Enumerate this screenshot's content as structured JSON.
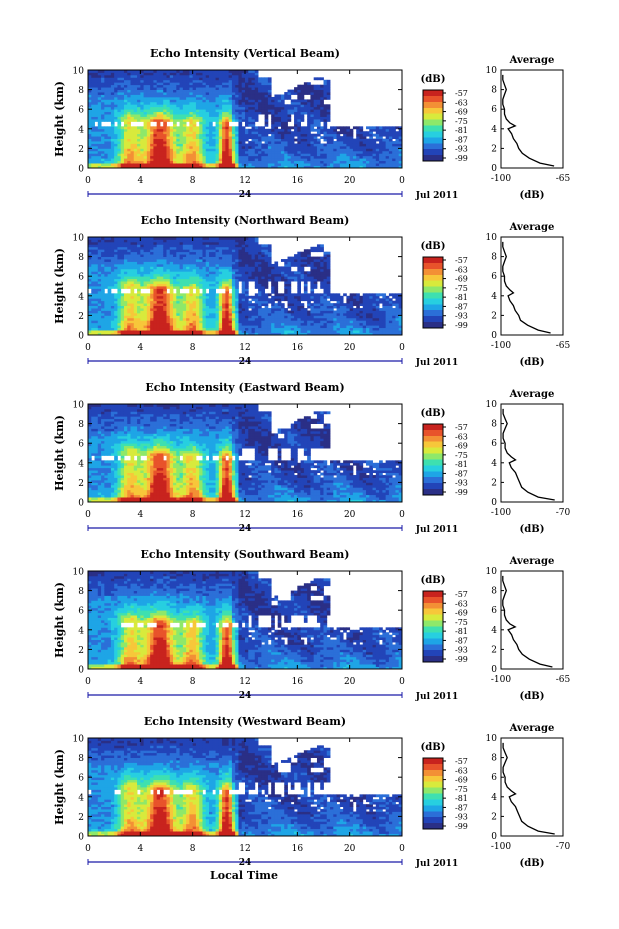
{
  "figure": {
    "xlabel": "Local Time",
    "colors": {
      "colormap": [
        "#2a2f86",
        "#2244b8",
        "#2b6fd8",
        "#1ea5e6",
        "#27cfe0",
        "#3ee0b0",
        "#8ee86a",
        "#d8ea3c",
        "#f7c73a",
        "#f39035",
        "#e8532b",
        "#c8231e"
      ],
      "no_data": "#ffffff",
      "axis": "#000000",
      "date_axis": "#1a1aa8"
    }
  },
  "chart_data": [
    {
      "type": "heatmap",
      "title": "Echo Intensity (Vertical Beam)",
      "ylabel": "Height (km)",
      "x_ticks": [
        "0",
        "4",
        "8",
        "12",
        "16",
        "20",
        "0"
      ],
      "xlim": [
        0,
        24
      ],
      "y_ticks": [
        "0",
        "2",
        "4",
        "6",
        "8",
        "10"
      ],
      "ylim": [
        0,
        10
      ],
      "date_tick": "24",
      "date_label": "Jul 2011",
      "colorbar_label": "(dB)",
      "colorbar_ticks": [
        "-57",
        "-63",
        "-69",
        "-75",
        "-81",
        "-87",
        "-93",
        "-99"
      ],
      "clim": [
        -99,
        -57
      ],
      "average_title": "Average",
      "average_xlabel": "(dB)",
      "average_xticks": [
        "-100",
        "-65"
      ],
      "average_xlim": [
        -100,
        -65
      ],
      "average_yticks": [
        "0",
        "2",
        "4",
        "6",
        "8",
        "10"
      ],
      "average_profile": {
        "height": [
          0.2,
          0.5,
          1.0,
          1.5,
          2.0,
          2.5,
          3.0,
          3.5,
          4.0,
          4.3,
          4.6,
          5.0,
          5.5,
          6.0,
          6.5,
          7.0,
          7.5,
          8.0,
          8.5,
          9.0,
          9.5
        ],
        "value": [
          -70,
          -78,
          -84,
          -88,
          -90,
          -91,
          -93,
          -94,
          -96,
          -92,
          -95,
          -97,
          -98,
          -98,
          -99,
          -99,
          -98,
          -97,
          -98,
          -99,
          -99
        ]
      }
    },
    {
      "type": "heatmap",
      "title": "Echo Intensity (Northward Beam)",
      "ylabel": "Height (km)",
      "x_ticks": [
        "0",
        "4",
        "8",
        "12",
        "16",
        "20",
        "0"
      ],
      "xlim": [
        0,
        24
      ],
      "y_ticks": [
        "0",
        "2",
        "4",
        "6",
        "8",
        "10"
      ],
      "ylim": [
        0,
        10
      ],
      "date_tick": "24",
      "date_label": "Jul 2011",
      "colorbar_label": "(dB)",
      "colorbar_ticks": [
        "-57",
        "-63",
        "-69",
        "-75",
        "-81",
        "-87",
        "-93",
        "-99"
      ],
      "clim": [
        -99,
        -57
      ],
      "average_title": "Average",
      "average_xlabel": "(dB)",
      "average_xticks": [
        "-100",
        "-65"
      ],
      "average_xlim": [
        -100,
        -65
      ],
      "average_yticks": [
        "0",
        "2",
        "4",
        "6",
        "8",
        "10"
      ],
      "average_profile": {
        "height": [
          0.2,
          0.5,
          1.0,
          1.5,
          2.0,
          2.5,
          3.0,
          3.5,
          4.0,
          4.3,
          4.6,
          5.0,
          5.5,
          6.0,
          6.5,
          7.0,
          7.5,
          8.0,
          8.5,
          9.0,
          9.5
        ],
        "value": [
          -72,
          -79,
          -85,
          -89,
          -90,
          -92,
          -93,
          -95,
          -96,
          -93,
          -95,
          -97,
          -98,
          -98,
          -99,
          -99,
          -98,
          -97,
          -98,
          -99,
          -99
        ]
      }
    },
    {
      "type": "heatmap",
      "title": "Echo Intensity (Eastward Beam)",
      "ylabel": "Height (km)",
      "x_ticks": [
        "0",
        "4",
        "8",
        "12",
        "16",
        "20",
        "0"
      ],
      "xlim": [
        0,
        24
      ],
      "y_ticks": [
        "0",
        "2",
        "4",
        "6",
        "8",
        "10"
      ],
      "ylim": [
        0,
        10
      ],
      "date_tick": "24",
      "date_label": "Jul 2011",
      "colorbar_label": "(dB)",
      "colorbar_ticks": [
        "-57",
        "-63",
        "-69",
        "-75",
        "-81",
        "-87",
        "-93",
        "-99"
      ],
      "clim": [
        -99,
        -57
      ],
      "average_title": "Average",
      "average_xlabel": "(dB)",
      "average_xticks": [
        "-100",
        "-70"
      ],
      "average_xlim": [
        -100,
        -70
      ],
      "average_yticks": [
        "0",
        "2",
        "4",
        "6",
        "8",
        "10"
      ],
      "average_profile": {
        "height": [
          0.2,
          0.5,
          1.0,
          1.5,
          2.0,
          2.5,
          3.0,
          3.5,
          4.0,
          4.3,
          4.6,
          5.0,
          5.5,
          6.0,
          6.5,
          7.0,
          7.5,
          8.0,
          8.5,
          9.0,
          9.5
        ],
        "value": [
          -74,
          -82,
          -87,
          -90,
          -91,
          -92,
          -93,
          -95,
          -96,
          -93,
          -95,
          -97,
          -98,
          -98,
          -99,
          -99,
          -98,
          -97,
          -98,
          -99,
          -99
        ]
      }
    },
    {
      "type": "heatmap",
      "title": "Echo Intensity (Southward Beam)",
      "ylabel": "Height (km)",
      "x_ticks": [
        "0",
        "4",
        "8",
        "12",
        "16",
        "20",
        "0"
      ],
      "xlim": [
        0,
        24
      ],
      "y_ticks": [
        "0",
        "2",
        "4",
        "6",
        "8",
        "10"
      ],
      "ylim": [
        0,
        10
      ],
      "date_tick": "24",
      "date_label": "Jul 2011",
      "colorbar_label": "(dB)",
      "colorbar_ticks": [
        "-57",
        "-63",
        "-69",
        "-75",
        "-81",
        "-87",
        "-93",
        "-99"
      ],
      "clim": [
        -99,
        -57
      ],
      "average_title": "Average",
      "average_xlabel": "(dB)",
      "average_xticks": [
        "-100",
        "-65"
      ],
      "average_xlim": [
        -100,
        -65
      ],
      "average_yticks": [
        "0",
        "2",
        "4",
        "6",
        "8",
        "10"
      ],
      "average_profile": {
        "height": [
          0.2,
          0.5,
          1.0,
          1.5,
          2.0,
          2.5,
          3.0,
          3.5,
          4.0,
          4.3,
          4.6,
          5.0,
          5.5,
          6.0,
          6.5,
          7.0,
          7.5,
          8.0,
          8.5,
          9.0,
          9.5
        ],
        "value": [
          -71,
          -78,
          -84,
          -88,
          -90,
          -91,
          -93,
          -94,
          -96,
          -92,
          -95,
          -97,
          -98,
          -98,
          -99,
          -99,
          -98,
          -97,
          -98,
          -99,
          -99
        ]
      }
    },
    {
      "type": "heatmap",
      "title": "Echo Intensity (Westward Beam)",
      "ylabel": "Height (km)",
      "x_ticks": [
        "0",
        "4",
        "8",
        "12",
        "16",
        "20",
        "0"
      ],
      "xlim": [
        0,
        24
      ],
      "y_ticks": [
        "0",
        "2",
        "4",
        "6",
        "8",
        "10"
      ],
      "ylim": [
        0,
        10
      ],
      "date_tick": "24",
      "date_label": "Jul 2011",
      "colorbar_label": "(dB)",
      "colorbar_ticks": [
        "-57",
        "-63",
        "-69",
        "-75",
        "-81",
        "-87",
        "-93",
        "-99"
      ],
      "clim": [
        -99,
        -57
      ],
      "average_title": "Average",
      "average_xlabel": "(dB)",
      "average_xticks": [
        "-100",
        "-70"
      ],
      "average_xlim": [
        -100,
        -70
      ],
      "average_yticks": [
        "0",
        "2",
        "4",
        "6",
        "8",
        "10"
      ],
      "average_profile": {
        "height": [
          0.2,
          0.5,
          1.0,
          1.5,
          2.0,
          2.5,
          3.0,
          3.5,
          4.0,
          4.3,
          4.6,
          5.0,
          5.5,
          6.0,
          6.5,
          7.0,
          7.5,
          8.0,
          8.5,
          9.0,
          9.5
        ],
        "value": [
          -74,
          -82,
          -87,
          -90,
          -91,
          -92,
          -93,
          -95,
          -96,
          -93,
          -95,
          -97,
          -98,
          -98,
          -99,
          -99,
          -98,
          -97,
          -98,
          -99,
          -99
        ]
      }
    }
  ]
}
